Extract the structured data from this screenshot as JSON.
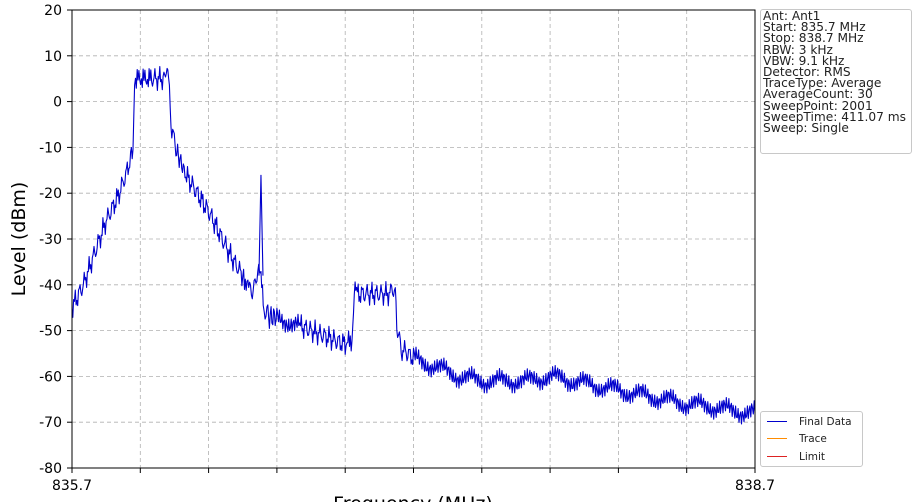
{
  "chart_data": {
    "type": "line",
    "ylabel": "Level (dBm)",
    "xlabel": "Frequency (MHz)",
    "xlim": [
      835.7,
      838.7
    ],
    "ylim": [
      -80,
      20
    ],
    "yticks": [
      20,
      10,
      0,
      -10,
      -20,
      -30,
      -40,
      -50,
      -60,
      -70,
      -80
    ],
    "xtick_labels": [
      {
        "value": 835.7,
        "label": "835.7"
      },
      {
        "value": 838.7,
        "label": "838.7"
      }
    ],
    "xgrid_values": [
      836.0,
      836.3,
      836.6,
      836.9,
      837.2,
      837.5,
      837.8,
      838.1,
      838.4
    ],
    "grid": true,
    "legend_position": "lower-right",
    "series": [
      {
        "name": "Final Data",
        "color": "#0000cc",
        "x": [
          835.7,
          835.75,
          835.8,
          835.85,
          835.9,
          835.95,
          835.968,
          835.975,
          836.05,
          836.1,
          836.128,
          836.135,
          836.16,
          836.2,
          836.25,
          836.3,
          836.35,
          836.4,
          836.45,
          836.48,
          836.5,
          836.52,
          836.53,
          836.54,
          836.56,
          836.6,
          836.7,
          836.75,
          836.8,
          836.85,
          836.9,
          836.93,
          836.94,
          836.95,
          837.0,
          837.05,
          837.1,
          837.12,
          837.13,
          837.15,
          837.2,
          837.3,
          837.4,
          837.5,
          837.6,
          837.7,
          837.8,
          837.9,
          838.0,
          838.1,
          838.2,
          838.3,
          838.4,
          838.5,
          838.6,
          838.7
        ],
        "y": [
          -45,
          -40,
          -33,
          -26,
          -21,
          -14,
          -10,
          5,
          5,
          5,
          5,
          -5,
          -11,
          -16,
          -20,
          -24,
          -29,
          -34,
          -38,
          -41,
          -40,
          -38,
          -36,
          -45,
          -47,
          -47,
          -49,
          -50,
          -51,
          -52,
          -53,
          -52,
          -41,
          -42,
          -42,
          -42,
          -42,
          -42,
          -51,
          -54,
          -56,
          -58,
          -60,
          -61,
          -61,
          -61,
          -60,
          -61,
          -62,
          -63,
          -64,
          -65,
          -66,
          -66.5,
          -67.5,
          -68
        ]
      },
      {
        "name": "Trace",
        "color": "#ff8c00",
        "x": [],
        "y": []
      },
      {
        "name": "Limit",
        "color": "#dd2222",
        "x": [],
        "y": []
      }
    ],
    "spurs": [
      {
        "x": 836.53,
        "y": -16
      }
    ]
  },
  "info_box": {
    "lines": [
      "Ant: Ant1",
      "Start: 835.7 MHz",
      "Stop: 838.7 MHz",
      "RBW: 3 kHz",
      "VBW: 9.1 kHz",
      "Detector: RMS",
      "TraceType: Average",
      "AverageCount: 30",
      "SweepPoint: 2001",
      "SweepTime: 411.07 ms",
      "Sweep: Single"
    ]
  }
}
